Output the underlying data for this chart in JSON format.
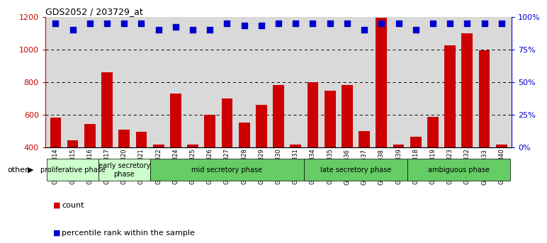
{
  "title": "GDS2052 / 203729_at",
  "categories": [
    "GSM109814",
    "GSM109815",
    "GSM109816",
    "GSM109817",
    "GSM109820",
    "GSM109821",
    "GSM109822",
    "GSM109824",
    "GSM109825",
    "GSM109826",
    "GSM109827",
    "GSM109828",
    "GSM109829",
    "GSM109830",
    "GSM109831",
    "GSM109834",
    "GSM109835",
    "GSM109836",
    "GSM109837",
    "GSM109838",
    "GSM109839",
    "GSM109818",
    "GSM109819",
    "GSM109823",
    "GSM109832",
    "GSM109833",
    "GSM109840"
  ],
  "counts": [
    580,
    440,
    540,
    860,
    505,
    495,
    415,
    730,
    415,
    600,
    700,
    550,
    660,
    780,
    415,
    800,
    745,
    780,
    500,
    1195,
    415,
    465,
    585,
    1025,
    1100,
    995,
    415
  ],
  "percentiles": [
    95,
    90,
    95,
    95,
    95,
    95,
    90,
    92,
    90,
    90,
    95,
    93,
    93,
    95,
    95,
    95,
    95,
    95,
    90,
    95,
    95,
    90,
    95,
    95,
    95,
    95,
    95
  ],
  "bar_color": "#cc0000",
  "dot_color": "#0000cc",
  "ylim_left": [
    400,
    1200
  ],
  "ylim_right": [
    0,
    100
  ],
  "yticks_left": [
    400,
    600,
    800,
    1000,
    1200
  ],
  "yticks_right": [
    0,
    25,
    50,
    75,
    100
  ],
  "phases": [
    {
      "label": "proliferative phase",
      "start": 0,
      "end": 3,
      "color": "#ccffcc"
    },
    {
      "label": "early secretory\nphase",
      "start": 3,
      "end": 6,
      "color": "#ccffcc"
    },
    {
      "label": "mid secretory phase",
      "start": 6,
      "end": 15,
      "color": "#66cc66"
    },
    {
      "label": "late secretory phase",
      "start": 15,
      "end": 21,
      "color": "#66cc66"
    },
    {
      "label": "ambiguous phase",
      "start": 21,
      "end": 27,
      "color": "#66cc66"
    }
  ],
  "other_label": "other",
  "legend_count_label": "count",
  "legend_pct_label": "percentile rank within the sample",
  "bg_color": "#d9d9d9",
  "dot_size": 30
}
